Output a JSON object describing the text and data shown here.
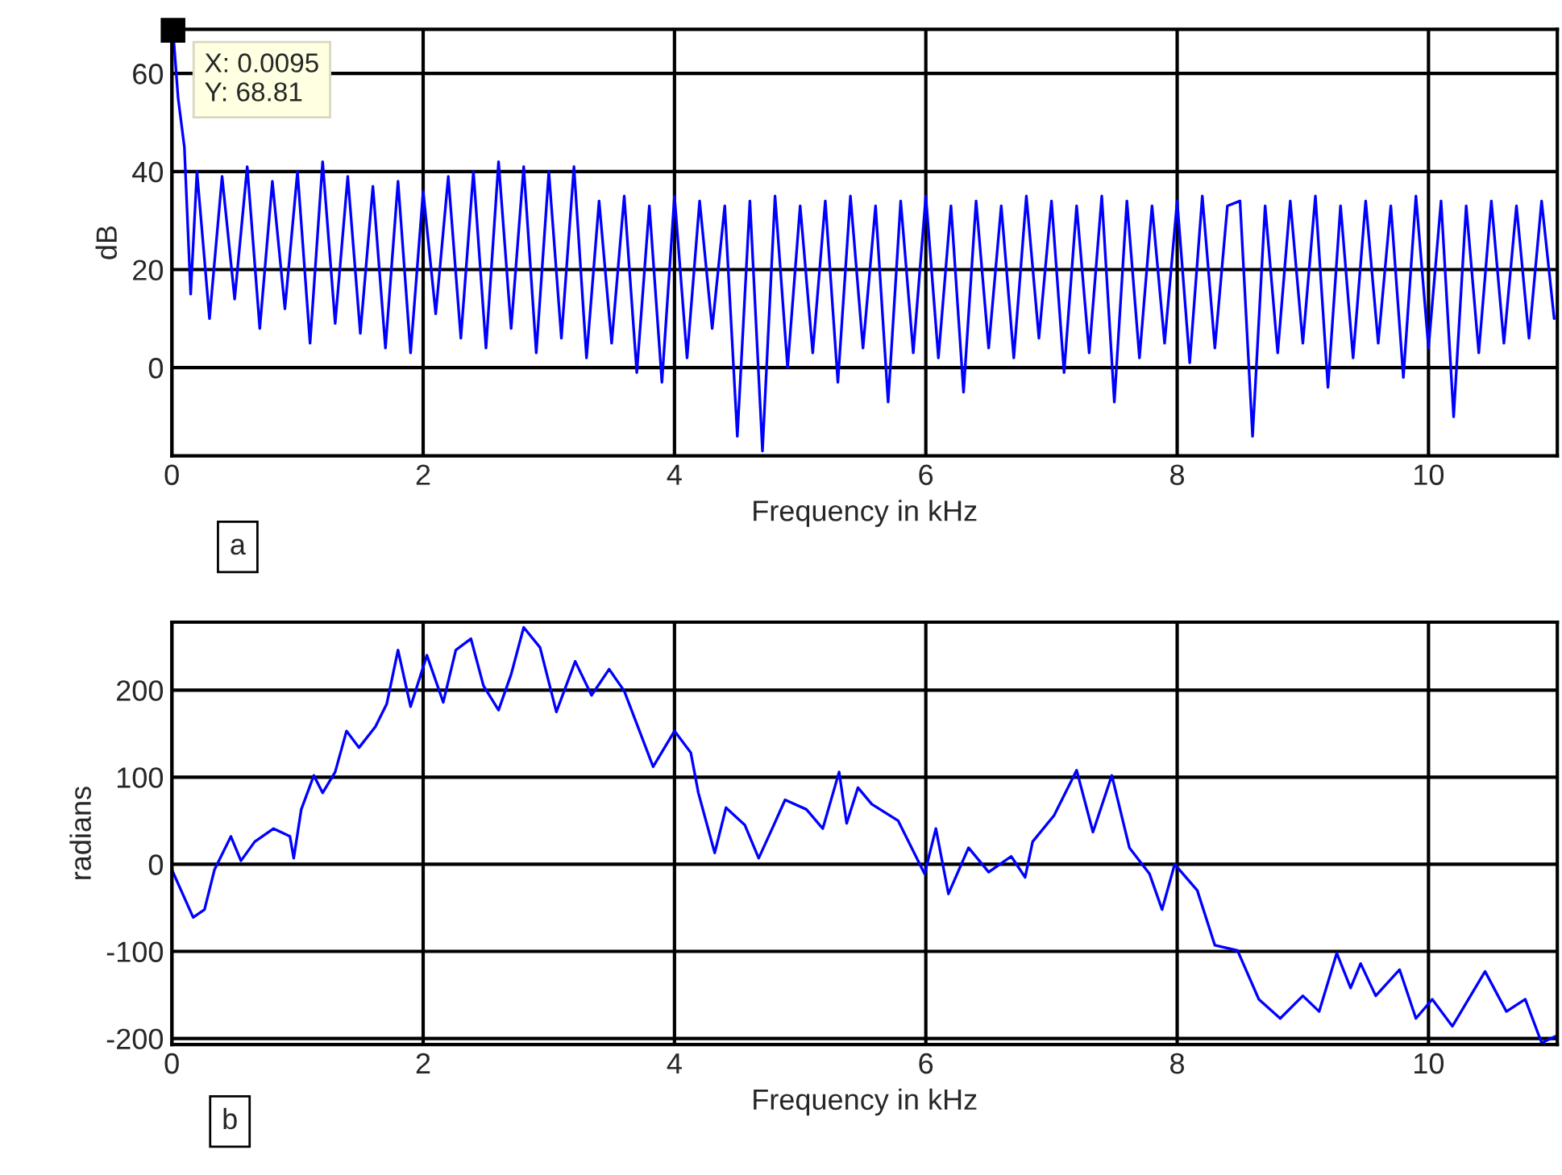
{
  "chart_data": [
    {
      "type": "line",
      "xlabel": "Frequency in kHz",
      "ylabel": "dB",
      "xlim": [
        0,
        11.025
      ],
      "ylim": [
        -18,
        69
      ],
      "xticks": [
        0,
        2,
        4,
        6,
        8,
        10
      ],
      "yticks": [
        0,
        20,
        40,
        60
      ],
      "grid": true,
      "line_style": "solid",
      "annotations": [
        {
          "text": "X: 0.0095\nY: 68.81",
          "x": 0.0095,
          "y": 68.81
        },
        "a"
      ],
      "series": [
        {
          "color": "#0000ff",
          "x": [
            0.0095,
            0.05,
            0.1,
            0.15,
            0.2,
            0.3,
            0.4,
            0.5,
            0.6,
            0.7,
            0.8,
            0.9,
            1.0,
            1.1,
            1.2,
            1.3,
            1.4,
            1.5,
            1.6,
            1.7,
            1.8,
            1.9,
            2.0,
            2.1,
            2.2,
            2.3,
            2.4,
            2.5,
            2.6,
            2.7,
            2.8,
            2.9,
            3.0,
            3.1,
            3.2,
            3.3,
            3.4,
            3.5,
            3.6,
            3.7,
            3.8,
            3.9,
            4.0,
            4.1,
            4.2,
            4.3,
            4.4,
            4.5,
            4.6,
            4.7,
            4.8,
            4.9,
            5.0,
            5.1,
            5.2,
            5.3,
            5.4,
            5.5,
            5.6,
            5.7,
            5.8,
            5.9,
            6.0,
            6.1,
            6.2,
            6.3,
            6.4,
            6.5,
            6.6,
            6.7,
            6.8,
            6.9,
            7.0,
            7.1,
            7.2,
            7.3,
            7.4,
            7.5,
            7.6,
            7.7,
            7.8,
            7.9,
            8.0,
            8.1,
            8.2,
            8.3,
            8.4,
            8.5,
            8.6,
            8.7,
            8.8,
            8.9,
            9.0,
            9.1,
            9.2,
            9.3,
            9.4,
            9.5,
            9.6,
            9.7,
            9.8,
            9.9,
            10.0,
            10.1,
            10.2,
            10.3,
            10.4,
            10.5,
            10.6,
            10.7,
            10.8,
            10.9,
            11.0
          ],
          "values": [
            68.81,
            55,
            45,
            15,
            40,
            10,
            39,
            14,
            41,
            8,
            38,
            12,
            40,
            5,
            42,
            9,
            39,
            7,
            37,
            4,
            38,
            3,
            36,
            11,
            39,
            6,
            40,
            4,
            42,
            8,
            41,
            3,
            40,
            6,
            41,
            2,
            34,
            5,
            35,
            -1,
            33,
            -3,
            35,
            2,
            34,
            8,
            33,
            -14,
            34,
            -17,
            35,
            0,
            33,
            3,
            34,
            -3,
            35,
            4,
            33,
            -7,
            34,
            3,
            35,
            2,
            33,
            -5,
            34,
            4,
            33,
            2,
            35,
            6,
            34,
            -1,
            33,
            3,
            35,
            -7,
            34,
            2,
            33,
            5,
            34,
            1,
            35,
            4,
            33,
            34,
            -14,
            33,
            3,
            34,
            5,
            35,
            -4,
            33,
            2,
            34,
            5,
            33,
            -2,
            35,
            4,
            34,
            -10,
            33,
            3,
            34,
            5,
            33,
            6,
            34,
            10
          ]
        }
      ]
    },
    {
      "type": "line",
      "xlabel": "Frequency in kHz",
      "ylabel": "radians",
      "xlim": [
        0,
        11.025
      ],
      "ylim": [
        -207,
        278
      ],
      "xticks": [
        0,
        2,
        4,
        6,
        8,
        10
      ],
      "yticks": [
        -200,
        -100,
        0,
        100,
        200
      ],
      "grid": true,
      "line_style": "solid",
      "annotations": [
        "b"
      ],
      "series": [
        {
          "color": "#0000ff",
          "x": [
            0,
            0.17,
            0.26,
            0.34,
            0.47,
            0.55,
            0.66,
            0.81,
            0.94,
            0.97,
            1.03,
            1.13,
            1.2,
            1.3,
            1.39,
            1.49,
            1.62,
            1.71,
            1.8,
            1.9,
            2.03,
            2.16,
            2.26,
            2.38,
            2.48,
            2.6,
            2.7,
            2.8,
            2.93,
            3.06,
            3.21,
            3.34,
            3.48,
            3.6,
            3.83,
            4.0,
            4.13,
            4.19,
            4.32,
            4.41,
            4.56,
            4.67,
            4.79,
            4.88,
            5.05,
            5.18,
            5.31,
            5.37,
            5.46,
            5.57,
            5.78,
            5.99,
            6.08,
            6.18,
            6.34,
            6.5,
            6.68,
            6.79,
            6.85,
            7.02,
            7.2,
            7.33,
            7.48,
            7.62,
            7.78,
            7.88,
            7.98,
            8.16,
            8.3,
            8.48,
            8.65,
            8.82,
            9.0,
            9.13,
            9.27,
            9.38,
            9.46,
            9.58,
            9.77,
            9.9,
            10.03,
            10.19,
            10.45,
            10.62,
            10.77,
            10.9,
            11.02
          ],
          "values": [
            -6,
            -61,
            -52,
            -6,
            32,
            4,
            26,
            41,
            32,
            7,
            63,
            102,
            82,
            106,
            153,
            134,
            158,
            184,
            246,
            181,
            240,
            186,
            246,
            259,
            205,
            177,
            218,
            272,
            249,
            175,
            233,
            194,
            224,
            199,
            112,
            153,
            128,
            82,
            13,
            65,
            45,
            7,
            45,
            74,
            63,
            41,
            106,
            47,
            88,
            69,
            50,
            -11,
            41,
            -34,
            19,
            -9,
            9,
            -15,
            26,
            56,
            108,
            37,
            102,
            19,
            -11,
            -52,
            0,
            -30,
            -93,
            -99,
            -155,
            -177,
            -151,
            -169,
            -102,
            -142,
            -114,
            -151,
            -121,
            -177,
            -155,
            -186,
            -123,
            -169,
            -155,
            -205,
            -197
          ]
        }
      ]
    }
  ]
}
